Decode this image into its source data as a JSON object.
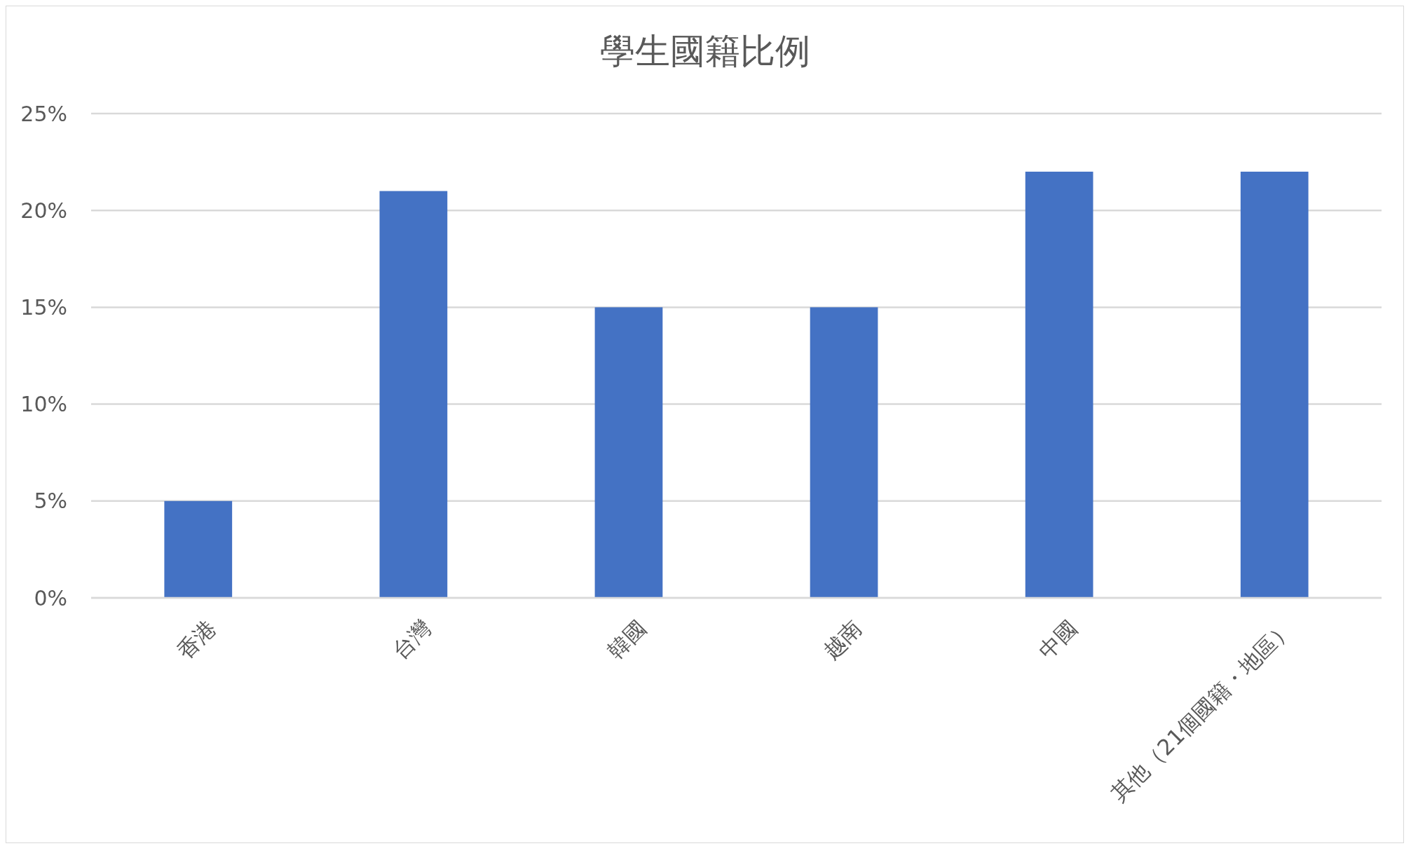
{
  "chart_data": {
    "type": "bar",
    "title": "學生國籍比例",
    "categories": [
      "香港",
      "台灣",
      "韓國",
      "越南",
      "中國",
      "其他（21個國籍・地區）"
    ],
    "values": [
      5,
      21,
      15,
      15,
      22,
      22
    ],
    "color": "#4472c4",
    "ylim": [
      0,
      25
    ],
    "yticks": [
      {
        "value": 0,
        "label": "0%"
      },
      {
        "value": 5,
        "label": "5%"
      },
      {
        "value": 10,
        "label": "10%"
      },
      {
        "value": 15,
        "label": "15%"
      },
      {
        "value": 20,
        "label": "20%"
      },
      {
        "value": 25,
        "label": "25%"
      }
    ],
    "grid": "y"
  }
}
